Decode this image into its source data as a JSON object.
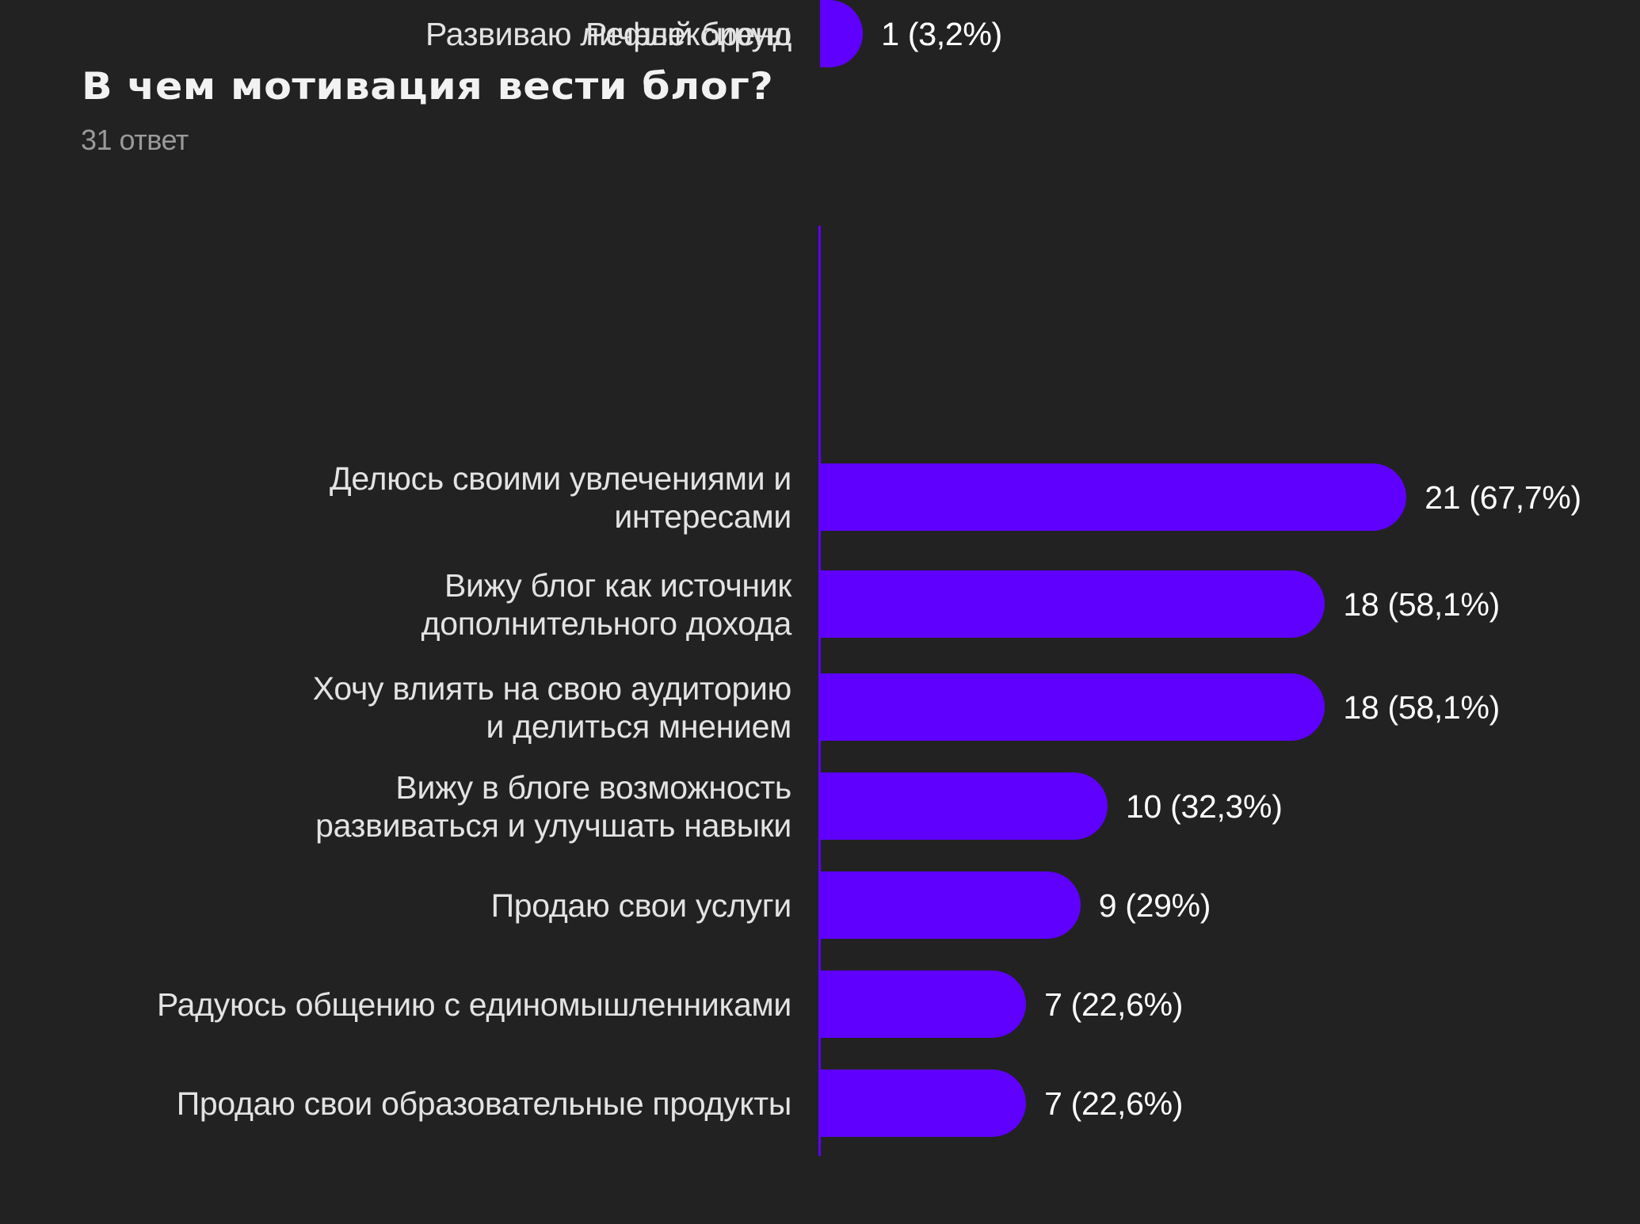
{
  "header": {
    "title": "В чем мотивация вести блог?",
    "subtitle": "31 ответ"
  },
  "colors": {
    "background": "#222222",
    "bar": "#5f00ff",
    "label_text": "#e3e3e3",
    "value_text": "#ffffff",
    "subtitle_text": "#9a9a9a"
  },
  "chart_data": {
    "type": "bar",
    "orientation": "horizontal",
    "title": "В чем мотивация вести блог?",
    "subtitle": "31 ответ",
    "total_responses": 31,
    "xlabel": "",
    "ylabel": "",
    "grid": false,
    "legend": null,
    "categories": [
      "Делюсь своими увлечениями и\nинтересами",
      "Вижу блог как источник\nдополнительного дохода",
      "Хочу влиять на свою аудиторию\nи делиться мнением",
      "Вижу в блоге возможность\nразвиваться и улучшать навыки",
      "Продаю свои услуги",
      "Радуюсь общению с единомышленниками",
      "Продаю свои образовательные продукты",
      "Рефлексирую",
      "Развиваю личный бренд"
    ],
    "values": [
      21,
      18,
      18,
      10,
      9,
      7,
      7,
      1,
      1
    ],
    "percentages": [
      67.7,
      58.1,
      58.1,
      32.3,
      29,
      22.6,
      22.6,
      3.2,
      3.2
    ],
    "value_labels": [
      "21 (67,7%)",
      "18 (58,1%)",
      "18 (58,1%)",
      "10 (32,3%)",
      "9 (29%)",
      "7 (22,6%)",
      "7 (22,6%)",
      "1 (3,2%)",
      "1 (3,2%)"
    ],
    "xlim": [
      0,
      21
    ]
  }
}
